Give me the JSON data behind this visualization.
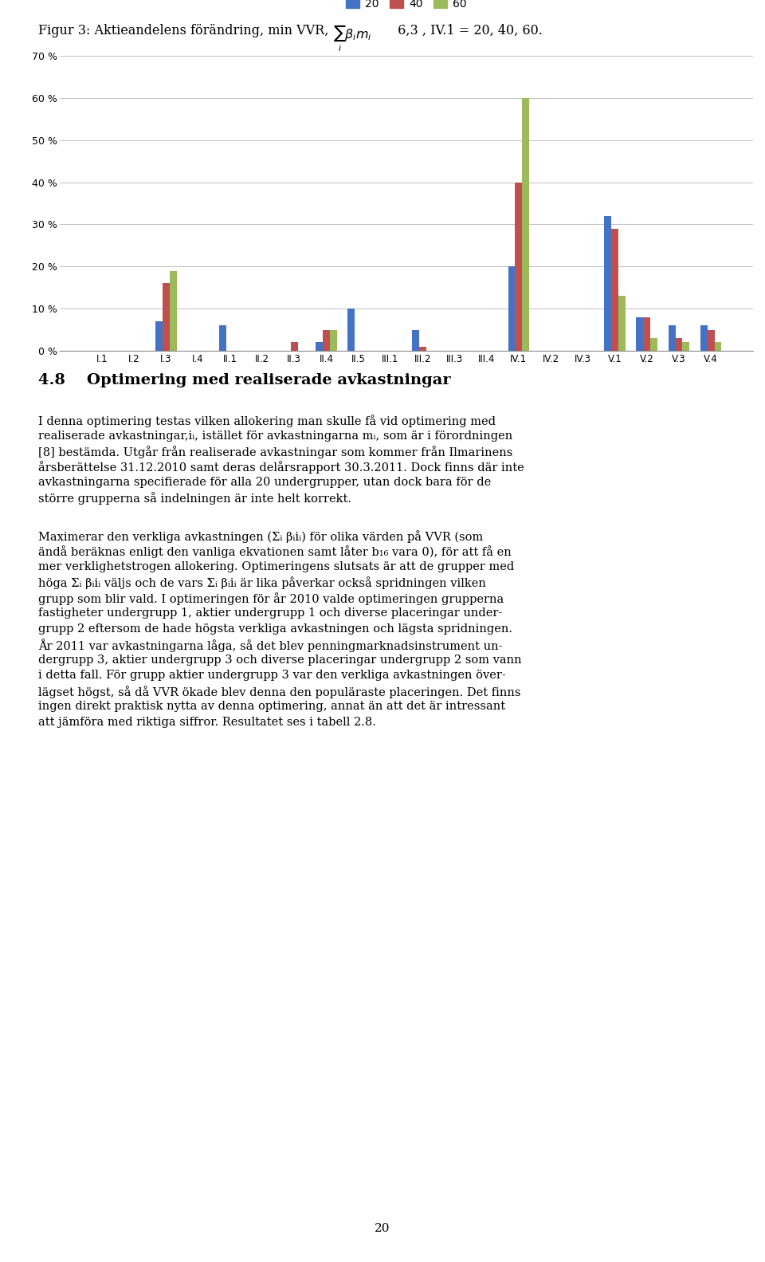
{
  "categories": [
    "I.1",
    "I.2",
    "I.3",
    "I.4",
    "II.1",
    "II.2",
    "II.3",
    "II.4",
    "II.5",
    "III.1",
    "III.2",
    "III.3",
    "III.4",
    "IV.1",
    "IV.2",
    "IV.3",
    "V.1",
    "V.2",
    "V.3",
    "V.4"
  ],
  "series": {
    "20": [
      0.0,
      0.0,
      0.07,
      0.0,
      0.06,
      0.0,
      0.0,
      0.02,
      0.1,
      0.0,
      0.05,
      0.0,
      0.0,
      0.2,
      0.0,
      0.0,
      0.32,
      0.08,
      0.06,
      0.06
    ],
    "40": [
      0.0,
      0.0,
      0.16,
      0.0,
      0.0,
      0.0,
      0.02,
      0.05,
      0.0,
      0.0,
      0.01,
      0.0,
      0.0,
      0.4,
      0.0,
      0.0,
      0.29,
      0.08,
      0.03,
      0.05
    ],
    "60": [
      0.0,
      0.0,
      0.19,
      0.0,
      0.0,
      0.0,
      0.0,
      0.05,
      0.0,
      0.0,
      0.0,
      0.0,
      0.0,
      0.6,
      0.0,
      0.0,
      0.13,
      0.03,
      0.02,
      0.02
    ]
  },
  "colors": {
    "20": "#4472C4",
    "40": "#C0504D",
    "60": "#9BBB59"
  },
  "legend_labels": [
    "20",
    "40",
    "60"
  ],
  "ylim": [
    0,
    0.7
  ],
  "yticks": [
    0.0,
    0.1,
    0.2,
    0.3,
    0.4,
    0.5,
    0.6,
    0.7
  ],
  "ytick_labels": [
    "0 %",
    "10 %",
    "20 %",
    "30 %",
    "40 %",
    "50 %",
    "60 %",
    "70 %"
  ],
  "fig_caption": "Figur 3: Aktieandelens förändring, min VVR,  ",
  "fig_caption_math": "$\\sum_i \\beta_i m_i$",
  "fig_caption_end": " 6,3 , IV.1 = 20, 40, 60.",
  "section_heading": "4.8    Optimering med realiserade avkastningar",
  "para1_lines": [
    "I denna optimering testas vilken allokering man skulle få vid optimering med",
    "realiserade avkastningar,iᵢ, istället för avkastningarna mᵢ, som är i förordningen",
    "[8] bestämda. Utgår från realiserade avkastningar som kommer från Ilmarinens",
    "årsberättelse 31.12.2010 samt deras delårsrapport 30.3.2011. Dock finns där inte",
    "avkastningarna specifierade för alla 20 undergrupper, utan dock bara för de",
    "större grupperna så indelningen är inte helt korrekt."
  ],
  "para2_lines": [
    "Maximerar den verkliga avkastningen (Σᵢ βᵢiᵢ) för olika värden på VVR (som",
    "ändå beräknas enligt den vanliga ekvationen samt låter b₁₆ vara 0), för att få en",
    "mer verklighetstrogen allokering. Optimeringens slutsats är att de grupper med",
    "höga Σᵢ βᵢiᵢ väljs och de vars Σᵢ βᵢiᵢ är lika påverkar också spridningen vilken",
    "grupp som blir vald. I optimeringen för år 2010 valde optimeringen grupperna",
    "fastigheter undergrupp 1, aktier undergrupp 1 och diverse placeringar under-",
    "grupp 2 eftersom de hade högsta verkliga avkastningen och lägsta spridningen.",
    "År 2011 var avkastningarna låga, så det blev penningmarknadsinstrument un-",
    "dergrupp 3, aktier undergrupp 3 och diverse placeringar undergrupp 2 som vann",
    "i detta fall. För grupp aktier undergrupp 3 var den verkliga avkastningen över-",
    "lägset högst, så då VVR ökade blev denna den populäraste placeringen. Det finns",
    "ingen direkt praktisk nytta av denna optimering, annat än att det är intressant",
    "att jämföra med riktiga siffror. Resultatet ses i tabell 2.8."
  ],
  "page_number": "20",
  "bar_width": 0.22
}
